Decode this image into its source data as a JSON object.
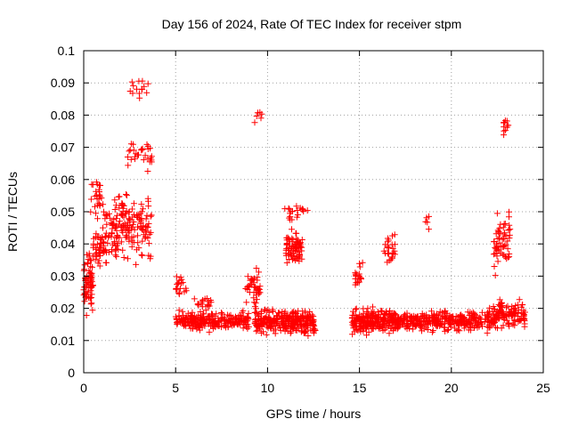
{
  "chart_data": {
    "type": "scatter",
    "title": "Day 156 of 2024, Rate Of TEC Index for receiver stpm",
    "xlabel": "GPS time / hours",
    "ylabel": "ROTI / TECUs",
    "xlim": [
      0,
      25
    ],
    "ylim": [
      0,
      0.1
    ],
    "x_ticks": [
      "0",
      "5",
      "10",
      "15",
      "20",
      "25"
    ],
    "x_tick_values": [
      0,
      5,
      10,
      15,
      20,
      25
    ],
    "y_ticks": [
      "0",
      "0.01",
      "0.02",
      "0.03",
      "0.04",
      "0.05",
      "0.06",
      "0.07",
      "0.08",
      "0.09",
      "0.1"
    ],
    "y_tick_values": [
      0,
      0.01,
      0.02,
      0.03,
      0.04,
      0.05,
      0.06,
      0.07,
      0.08,
      0.09,
      0.1
    ],
    "grid": true,
    "marker": "+",
    "color": "#ff0000",
    "clusters": [
      {
        "x_range": [
          0.0,
          0.5
        ],
        "y_center": 0.028,
        "y_spread": 0.012,
        "count": 70
      },
      {
        "x_range": [
          0.5,
          2.0
        ],
        "y_center": 0.04,
        "y_spread": 0.01,
        "count": 90
      },
      {
        "x_range": [
          0.3,
          1.0
        ],
        "y_center": 0.055,
        "y_spread": 0.008,
        "count": 25
      },
      {
        "x_range": [
          1.0,
          2.3
        ],
        "y_center": 0.05,
        "y_spread": 0.008,
        "count": 25
      },
      {
        "x_range": [
          2.0,
          3.7
        ],
        "y_center": 0.045,
        "y_spread": 0.013,
        "count": 110
      },
      {
        "x_range": [
          2.3,
          3.7
        ],
        "y_center": 0.068,
        "y_spread": 0.006,
        "count": 30
      },
      {
        "x_range": [
          2.5,
          3.5
        ],
        "y_center": 0.088,
        "y_spread": 0.005,
        "count": 14
      },
      {
        "x_range": [
          5.0,
          9.0
        ],
        "y_center": 0.016,
        "y_spread": 0.004,
        "count": 240
      },
      {
        "x_range": [
          5.0,
          5.6
        ],
        "y_center": 0.027,
        "y_spread": 0.004,
        "count": 20
      },
      {
        "x_range": [
          6.0,
          7.0
        ],
        "y_center": 0.022,
        "y_spread": 0.003,
        "count": 20
      },
      {
        "x_range": [
          8.7,
          9.6
        ],
        "y_center": 0.026,
        "y_spread": 0.008,
        "count": 40
      },
      {
        "x_range": [
          9.3,
          12.6
        ],
        "y_center": 0.016,
        "y_spread": 0.005,
        "count": 320
      },
      {
        "x_range": [
          9.3,
          9.7
        ],
        "y_center": 0.08,
        "y_spread": 0.006,
        "count": 6
      },
      {
        "x_range": [
          11.0,
          11.9
        ],
        "y_center": 0.038,
        "y_spread": 0.008,
        "count": 80
      },
      {
        "x_range": [
          10.9,
          12.3
        ],
        "y_center": 0.05,
        "y_spread": 0.005,
        "count": 20
      },
      {
        "x_range": [
          14.6,
          17.0
        ],
        "y_center": 0.016,
        "y_spread": 0.005,
        "count": 230
      },
      {
        "x_range": [
          14.7,
          15.2
        ],
        "y_center": 0.03,
        "y_spread": 0.005,
        "count": 20
      },
      {
        "x_range": [
          16.3,
          17.0
        ],
        "y_center": 0.038,
        "y_spread": 0.007,
        "count": 25
      },
      {
        "x_range": [
          17.0,
          22.3
        ],
        "y_center": 0.016,
        "y_spread": 0.004,
        "count": 330
      },
      {
        "x_range": [
          18.6,
          18.8
        ],
        "y_center": 0.046,
        "y_spread": 0.003,
        "count": 5
      },
      {
        "x_range": [
          22.3,
          23.2
        ],
        "y_center": 0.04,
        "y_spread": 0.012,
        "count": 60
      },
      {
        "x_range": [
          22.8,
          23.1
        ],
        "y_center": 0.077,
        "y_spread": 0.005,
        "count": 12
      },
      {
        "x_range": [
          22.0,
          24.0
        ],
        "y_center": 0.018,
        "y_spread": 0.006,
        "count": 130
      }
    ]
  }
}
